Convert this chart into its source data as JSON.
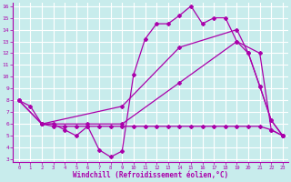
{
  "xlabel": "Windchill (Refroidissement éolien,°C)",
  "bg_color": "#c8ecec",
  "line_color": "#aa00aa",
  "grid_color": "#ffffff",
  "xlim": [
    -0.5,
    23.5
  ],
  "ylim": [
    2.8,
    16.3
  ],
  "xticks": [
    0,
    1,
    2,
    3,
    4,
    5,
    6,
    7,
    8,
    9,
    10,
    11,
    12,
    13,
    14,
    15,
    16,
    17,
    18,
    19,
    20,
    21,
    22,
    23
  ],
  "yticks": [
    3,
    4,
    5,
    6,
    7,
    8,
    9,
    10,
    11,
    12,
    13,
    14,
    15,
    16
  ],
  "line1_x": [
    0,
    1,
    2,
    3,
    4,
    5,
    6,
    7,
    8,
    9,
    10,
    11,
    12,
    13,
    14,
    15,
    16,
    17,
    18,
    19,
    20,
    21,
    22,
    23
  ],
  "line1_y": [
    8.0,
    7.5,
    6.0,
    6.0,
    5.5,
    5.0,
    5.8,
    3.8,
    3.2,
    3.7,
    10.2,
    13.2,
    14.5,
    14.5,
    15.2,
    16.0,
    14.5,
    15.0,
    15.0,
    13.0,
    12.0,
    9.2,
    6.3,
    5.0
  ],
  "line2_x": [
    0,
    2,
    9,
    14,
    19,
    20,
    21,
    22,
    23
  ],
  "line2_y": [
    8.0,
    6.0,
    7.5,
    12.5,
    14.0,
    12.0,
    9.2,
    6.3,
    5.0
  ],
  "line3_x": [
    0,
    2,
    6,
    9,
    14,
    19,
    21,
    22,
    23
  ],
  "line3_y": [
    8.0,
    6.0,
    6.0,
    6.0,
    9.5,
    13.0,
    12.0,
    5.5,
    5.0
  ],
  "line4_x": [
    2,
    3,
    4,
    5,
    6,
    7,
    8,
    9,
    10,
    11,
    12,
    13,
    14,
    15,
    16,
    17,
    18,
    19,
    20,
    21,
    22,
    23
  ],
  "line4_y": [
    6.0,
    5.8,
    5.8,
    5.8,
    5.8,
    5.8,
    5.8,
    5.8,
    5.8,
    5.8,
    5.8,
    5.8,
    5.8,
    5.8,
    5.8,
    5.8,
    5.8,
    5.8,
    5.8,
    5.8,
    5.5,
    5.0
  ]
}
